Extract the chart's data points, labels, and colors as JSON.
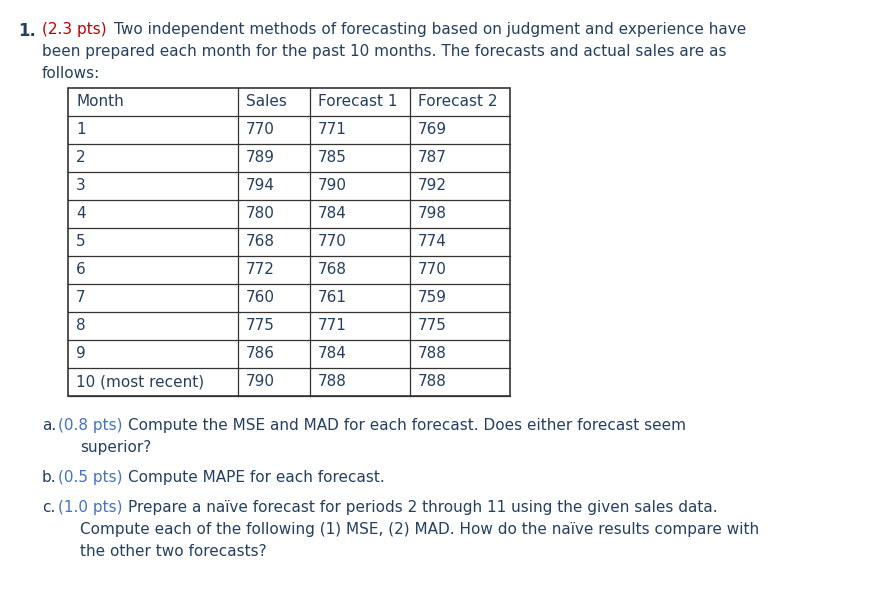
{
  "table_headers": [
    "Month",
    "Sales",
    "Forecast 1",
    "Forecast 2"
  ],
  "table_rows": [
    [
      "1",
      "770",
      "771",
      "769"
    ],
    [
      "2",
      "789",
      "785",
      "787"
    ],
    [
      "3",
      "794",
      "790",
      "792"
    ],
    [
      "4",
      "780",
      "784",
      "798"
    ],
    [
      "5",
      "768",
      "770",
      "774"
    ],
    [
      "6",
      "772",
      "768",
      "770"
    ],
    [
      "7",
      "760",
      "761",
      "759"
    ],
    [
      "8",
      "775",
      "771",
      "775"
    ],
    [
      "9",
      "786",
      "784",
      "788"
    ],
    [
      "10 (most recent)",
      "790",
      "788",
      "788"
    ]
  ],
  "color_red": "#C00000",
  "color_blue": "#243F60",
  "color_pts_blue": "#4472C4",
  "color_black": "#1F3864",
  "color_bg": "#ffffff",
  "body_fontsize": 11.0,
  "num_fontsize": 12.0
}
